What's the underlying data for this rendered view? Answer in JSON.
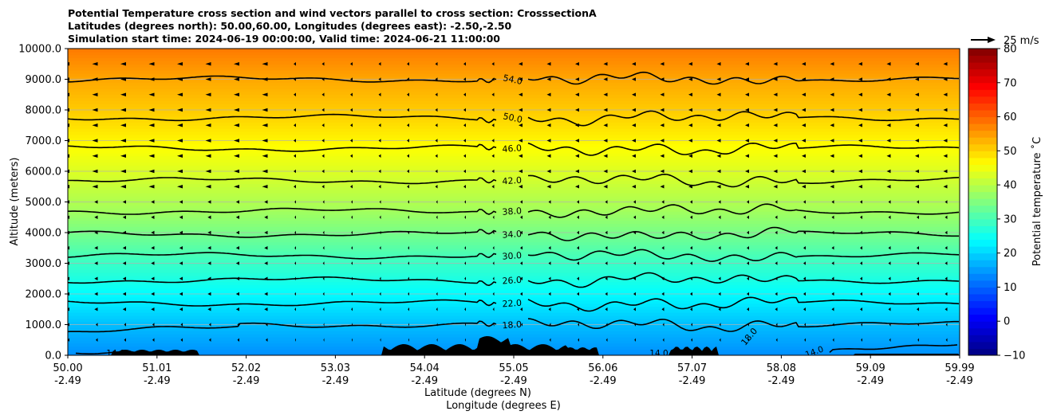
{
  "title_lines": [
    "Potential Temperature cross section and wind vectors parallel to cross section: CrosssectionA",
    "Latitudes (degrees north): 50.00,60.00, Longitudes (degrees east): -2.50,-2.50",
    "Simulation start time: 2024-06-19 00:00:00, Valid time: 2024-06-21 11:00:00"
  ],
  "chart_data": {
    "type": "heatmap",
    "title": "Potential Temperature cross section and wind vectors parallel to cross section: CrosssectionA",
    "ylabel": "Altitude (meters)",
    "xlabel_1": "Latitude (degrees N)",
    "xlabel_2": "Longitude (degrees E)",
    "ylim": [
      0,
      10000
    ],
    "y_ticks": [
      "0.0",
      "1000.0",
      "2000.0",
      "3000.0",
      "4000.0",
      "5000.0",
      "6000.0",
      "7000.0",
      "8000.0",
      "9000.0",
      "10000.0"
    ],
    "x_ticks_lat": [
      "50.00",
      "51.01",
      "52.02",
      "53.03",
      "54.04",
      "55.05",
      "56.06",
      "57.07",
      "58.08",
      "59.09",
      "59.99"
    ],
    "x_ticks_lon": [
      "-2.49",
      "-2.49",
      "-2.49",
      "-2.49",
      "-2.49",
      "-2.49",
      "-2.49",
      "-2.49",
      "-2.49",
      "-2.49",
      "-2.49"
    ],
    "grid": "horizontal",
    "colorbar": {
      "label": "Potential temperature $^\\circ$C",
      "label_display": "Potential temperature ˚C",
      "range": [
        -10,
        80
      ],
      "ticks": [
        "−10",
        "0",
        "10",
        "20",
        "30",
        "40",
        "50",
        "60",
        "70",
        "80"
      ],
      "colormap": "jet"
    },
    "quiver_key": "25 m/s",
    "contours": [
      {
        "label": "14.0",
        "altitude": 50
      },
      {
        "label": "18.0",
        "altitude": 1000
      },
      {
        "label": "22.0",
        "altitude": 1700
      },
      {
        "label": "26.0",
        "altitude": 2450
      },
      {
        "label": "30.0",
        "altitude": 3250
      },
      {
        "label": "34.0",
        "altitude": 3950
      },
      {
        "label": "38.0",
        "altitude": 4700
      },
      {
        "label": "42.0",
        "altitude": 5700
      },
      {
        "label": "46.0",
        "altitude": 6750
      },
      {
        "label": "50.0",
        "altitude": 7750
      },
      {
        "label": "54.0",
        "altitude": 9000
      }
    ]
  }
}
